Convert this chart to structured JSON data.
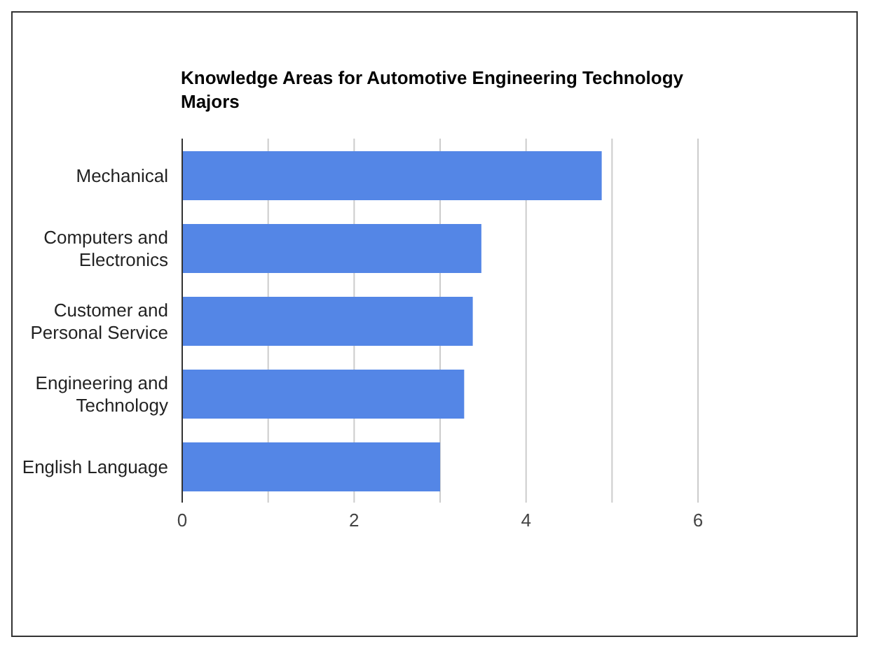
{
  "chart_data": {
    "type": "bar",
    "orientation": "horizontal",
    "title": "Knowledge Areas for Automotive Engineering Technology Majors",
    "categories": [
      "Mechanical",
      "Computers and Electronics",
      "Customer and Personal Service",
      "Engineering and Technology",
      "English Language"
    ],
    "values": [
      4.88,
      3.48,
      3.38,
      3.28,
      3.0
    ],
    "color": "#5486e6",
    "xlim": [
      0,
      6
    ],
    "xticks": [
      0,
      {
        "value": 1,
        "label": null
      },
      2,
      {
        "value": 3,
        "label": null
      },
      4,
      {
        "value": 5,
        "label": null
      },
      6
    ],
    "grid": "x",
    "legend": false
  }
}
